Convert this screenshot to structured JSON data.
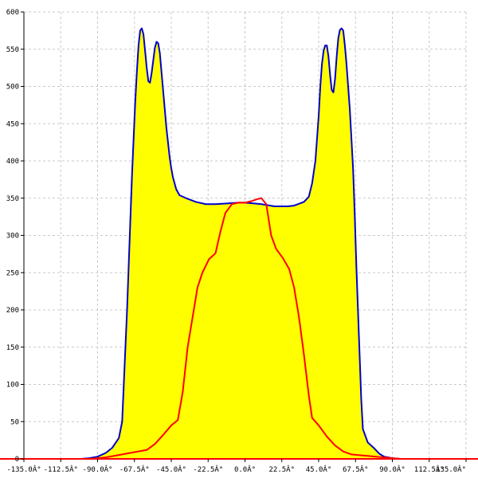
{
  "chart_data": {
    "type": "area",
    "title": "",
    "xlabel": "",
    "ylabel": "",
    "xlim": [
      -135,
      135
    ],
    "ylim": [
      0,
      600
    ],
    "grid": true,
    "x_ticks": [
      {
        "value": -135,
        "label": "-135.0Â°"
      },
      {
        "value": -112.5,
        "label": "-112.5Â°"
      },
      {
        "value": -90,
        "label": "-90.0Â°"
      },
      {
        "value": -67.5,
        "label": "-67.5Â°"
      },
      {
        "value": -45,
        "label": "-45.0Â°"
      },
      {
        "value": -22.5,
        "label": "-22.5Â°"
      },
      {
        "value": 0,
        "label": "0.0Â°"
      },
      {
        "value": 22.5,
        "label": "22.5Â°"
      },
      {
        "value": 45,
        "label": "45.0Â°"
      },
      {
        "value": 67.5,
        "label": "67.5Â°"
      },
      {
        "value": 90,
        "label": "90.0Â°"
      },
      {
        "value": 112.5,
        "label": "112.5Â°"
      },
      {
        "value": 135,
        "label": "135.0Â°"
      }
    ],
    "y_ticks": [
      {
        "value": 0,
        "label": "0"
      },
      {
        "value": 50,
        "label": "50"
      },
      {
        "value": 100,
        "label": "100"
      },
      {
        "value": 150,
        "label": "150"
      },
      {
        "value": 200,
        "label": "200"
      },
      {
        "value": 250,
        "label": "250"
      },
      {
        "value": 300,
        "label": "300"
      },
      {
        "value": 350,
        "label": "350"
      },
      {
        "value": 400,
        "label": "400"
      },
      {
        "value": 450,
        "label": "450"
      },
      {
        "value": 500,
        "label": "500"
      },
      {
        "value": 550,
        "label": "550"
      },
      {
        "value": 600,
        "label": "600"
      }
    ],
    "series": [
      {
        "color": "#0000cc",
        "fill": "#ffff00",
        "points": [
          [
            -135,
            0
          ],
          [
            -100,
            0
          ],
          [
            -95,
            1
          ],
          [
            -90,
            3
          ],
          [
            -85,
            8
          ],
          [
            -81,
            15
          ],
          [
            -77,
            28
          ],
          [
            -75,
            50
          ],
          [
            -74,
            100
          ],
          [
            -73,
            150
          ],
          [
            -72,
            200
          ],
          [
            -71,
            260
          ],
          [
            -70,
            320
          ],
          [
            -69,
            380
          ],
          [
            -68,
            430
          ],
          [
            -67,
            480
          ],
          [
            -66,
            520
          ],
          [
            -65,
            555
          ],
          [
            -64,
            575
          ],
          [
            -63,
            578
          ],
          [
            -62,
            570
          ],
          [
            -61,
            548
          ],
          [
            -60,
            525
          ],
          [
            -59,
            507
          ],
          [
            -58,
            505
          ],
          [
            -57,
            518
          ],
          [
            -56,
            535
          ],
          [
            -55,
            552
          ],
          [
            -54,
            560
          ],
          [
            -53,
            558
          ],
          [
            -52,
            545
          ],
          [
            -51,
            520
          ],
          [
            -50,
            495
          ],
          [
            -49,
            470
          ],
          [
            -48,
            445
          ],
          [
            -47,
            425
          ],
          [
            -46,
            405
          ],
          [
            -45,
            390
          ],
          [
            -44,
            378
          ],
          [
            -42,
            362
          ],
          [
            -40,
            354
          ],
          [
            -36,
            350
          ],
          [
            -30,
            345
          ],
          [
            -24,
            342
          ],
          [
            -18,
            342
          ],
          [
            -10,
            343
          ],
          [
            -4,
            344
          ],
          [
            0,
            344
          ],
          [
            5,
            343
          ],
          [
            10,
            342
          ],
          [
            18,
            339
          ],
          [
            26,
            339
          ],
          [
            30,
            340
          ],
          [
            36,
            345
          ],
          [
            39,
            352
          ],
          [
            41,
            370
          ],
          [
            43,
            400
          ],
          [
            45,
            460
          ],
          [
            46,
            500
          ],
          [
            47,
            530
          ],
          [
            48,
            548
          ],
          [
            49,
            555
          ],
          [
            50,
            555
          ],
          [
            51,
            540
          ],
          [
            52,
            515
          ],
          [
            53,
            495
          ],
          [
            54,
            492
          ],
          [
            55,
            510
          ],
          [
            56,
            540
          ],
          [
            57,
            565
          ],
          [
            58,
            576
          ],
          [
            59,
            578
          ],
          [
            60,
            575
          ],
          [
            61,
            555
          ],
          [
            62,
            530
          ],
          [
            63,
            500
          ],
          [
            64,
            470
          ],
          [
            65,
            430
          ],
          [
            66,
            390
          ],
          [
            67,
            330
          ],
          [
            68,
            260
          ],
          [
            69,
            200
          ],
          [
            70,
            140
          ],
          [
            71,
            80
          ],
          [
            72,
            40
          ],
          [
            75,
            22
          ],
          [
            79,
            14
          ],
          [
            82,
            7
          ],
          [
            85,
            3
          ],
          [
            90,
            1
          ],
          [
            95,
            0
          ],
          [
            135,
            0
          ]
        ]
      },
      {
        "color": "#ff0000",
        "points": [
          [
            -135,
            0
          ],
          [
            -103,
            0
          ],
          [
            -95,
            0
          ],
          [
            -90,
            1
          ],
          [
            -85,
            2
          ],
          [
            -80,
            4
          ],
          [
            -75,
            6
          ],
          [
            -70,
            8
          ],
          [
            -65,
            10
          ],
          [
            -60,
            12
          ],
          [
            -55,
            20
          ],
          [
            -50,
            32
          ],
          [
            -45,
            45
          ],
          [
            -41,
            52
          ],
          [
            -38,
            90
          ],
          [
            -35,
            150
          ],
          [
            -32,
            190
          ],
          [
            -29,
            230
          ],
          [
            -26,
            250
          ],
          [
            -22,
            268
          ],
          [
            -18,
            276
          ],
          [
            -15,
            305
          ],
          [
            -12,
            330
          ],
          [
            -8,
            342
          ],
          [
            -4,
            344
          ],
          [
            0,
            344
          ],
          [
            4,
            346
          ],
          [
            8,
            349
          ],
          [
            10,
            350
          ],
          [
            13,
            342
          ],
          [
            16,
            300
          ],
          [
            19,
            282
          ],
          [
            23,
            270
          ],
          [
            27,
            255
          ],
          [
            30,
            230
          ],
          [
            33,
            190
          ],
          [
            36,
            140
          ],
          [
            39,
            85
          ],
          [
            41,
            55
          ],
          [
            45,
            45
          ],
          [
            50,
            30
          ],
          [
            55,
            18
          ],
          [
            60,
            10
          ],
          [
            65,
            6
          ],
          [
            70,
            5
          ],
          [
            75,
            4
          ],
          [
            80,
            3
          ],
          [
            85,
            2
          ],
          [
            90,
            1
          ],
          [
            95,
            0
          ],
          [
            135,
            0
          ]
        ]
      }
    ],
    "baseline_color": "#ff0000"
  }
}
